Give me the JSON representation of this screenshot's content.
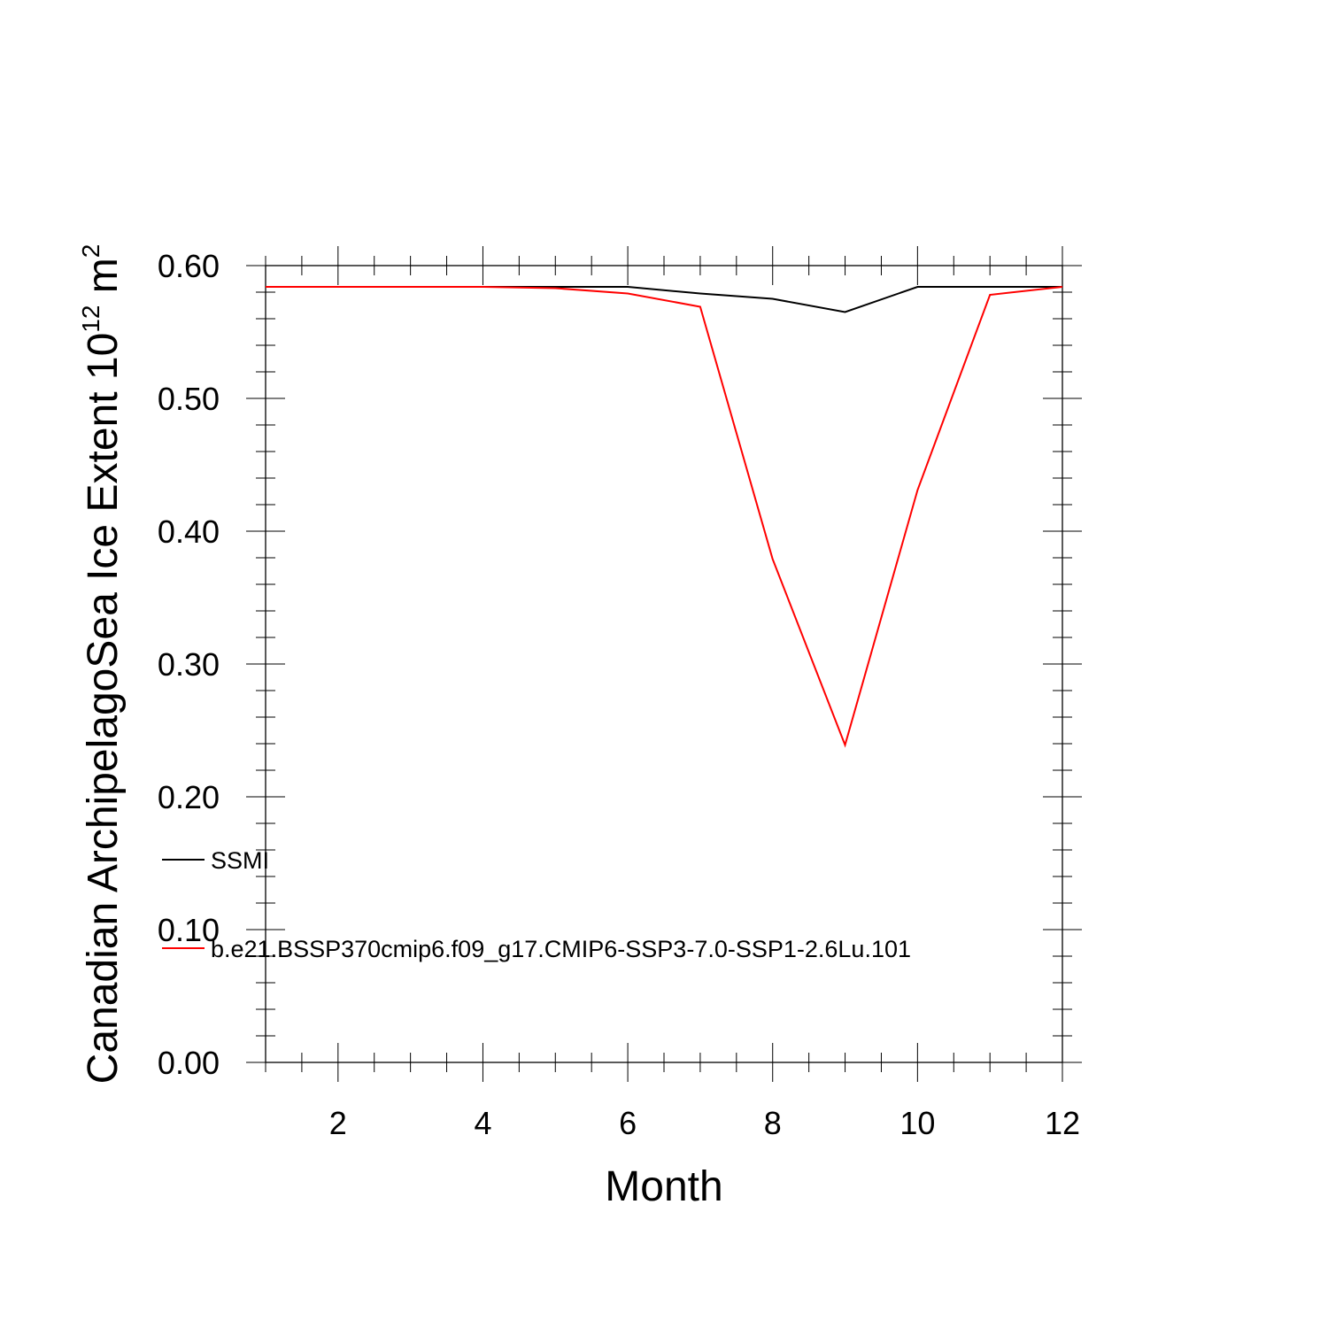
{
  "chart_data": {
    "type": "line",
    "xlabel": "Month",
    "ylabel": "Canadian ArchipelagoSea Ice Extent 10",
    "ylabel_sup1": "12",
    "ylabel_unit": " m",
    "ylabel_sup2": "2",
    "xlim": [
      1,
      12
    ],
    "ylim": [
      0.0,
      0.6
    ],
    "x_ticks": [
      2,
      4,
      6,
      8,
      10,
      12
    ],
    "x_tick_labels": [
      "2",
      "4",
      "6",
      "8",
      "10",
      "12"
    ],
    "y_ticks": [
      0.0,
      0.1,
      0.2,
      0.3,
      0.4,
      0.5,
      0.6
    ],
    "y_tick_labels": [
      "0.00",
      "0.10",
      "0.20",
      "0.30",
      "0.40",
      "0.50",
      "0.60"
    ],
    "x": [
      1,
      2,
      3,
      4,
      5,
      6,
      7,
      8,
      9,
      10,
      11,
      12
    ],
    "grid": false,
    "legend_position": "left, inside plot",
    "series": [
      {
        "name": "SSMI",
        "color": "#000000",
        "values": [
          0.584,
          0.584,
          0.584,
          0.584,
          0.584,
          0.584,
          0.579,
          0.575,
          0.565,
          0.584,
          0.584,
          0.584
        ]
      },
      {
        "name": "b.e21.BSSP370cmip6.f09_g17.CMIP6-SSP3-7.0-SSP1-2.6Lu.101",
        "color": "#ff0000",
        "values": [
          0.584,
          0.584,
          0.584,
          0.584,
          0.583,
          0.579,
          0.569,
          0.379,
          0.239,
          0.431,
          0.578,
          0.584
        ]
      }
    ]
  }
}
